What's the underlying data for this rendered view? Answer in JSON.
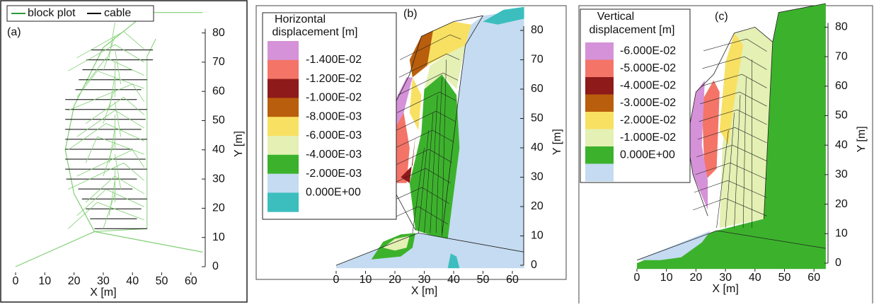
{
  "panels": [
    {
      "label": "(a)",
      "legend": [
        "block plot",
        "cable"
      ],
      "colors": [
        "#2e9a3e",
        "#000000"
      ],
      "xlabel": "X [m]",
      "ylabel": "Y [m]",
      "xticks": [
        0,
        10,
        20,
        30,
        40,
        50,
        60
      ],
      "yticks": [
        0,
        10,
        20,
        30,
        40,
        50,
        60,
        70,
        80
      ]
    },
    {
      "label": "(b)",
      "legend_title": [
        "Horizontal",
        "displacement [m]"
      ],
      "legend_labels": [
        "-1.400E-02",
        "-1.200E-02",
        "-1.000E-02",
        "-8.000E-03",
        "-6.000E-03",
        "-4.000E-03",
        "-2.000E-03",
        "0.000E+00"
      ],
      "colors": [
        "#d592d8",
        "#f47468",
        "#8e1a1a",
        "#b95e0c",
        "#f8e062",
        "#e4f0b4",
        "#3cb22c",
        "#c4dbf1",
        "#3cbebe"
      ],
      "xlabel": "X [m]",
      "ylabel": "Y [m]",
      "xticks": [
        0,
        10,
        20,
        30,
        40,
        50,
        60
      ],
      "yticks": [
        0,
        10,
        20,
        30,
        40,
        50,
        60,
        70,
        80
      ]
    },
    {
      "label": "(c)",
      "legend_title": [
        "Vertical",
        "displacement [m]"
      ],
      "legend_labels": [
        "-6.000E-02",
        "-5.000E-02",
        "-4.000E-02",
        "-3.000E-02",
        "-2.000E-02",
        "-1.000E-02",
        "0.000E+00"
      ],
      "colors": [
        "#d592d8",
        "#f47468",
        "#8e1a1a",
        "#b95e0c",
        "#f8e062",
        "#e4f0b4",
        "#3cb22c",
        "#c4dbf1"
      ],
      "xlabel": "X [m]",
      "ylabel": "Y [m]",
      "xticks": [
        0,
        10,
        20,
        30,
        40,
        50,
        60
      ],
      "yticks": [
        0,
        10,
        20,
        30,
        40,
        50,
        60,
        70,
        80
      ]
    }
  ]
}
